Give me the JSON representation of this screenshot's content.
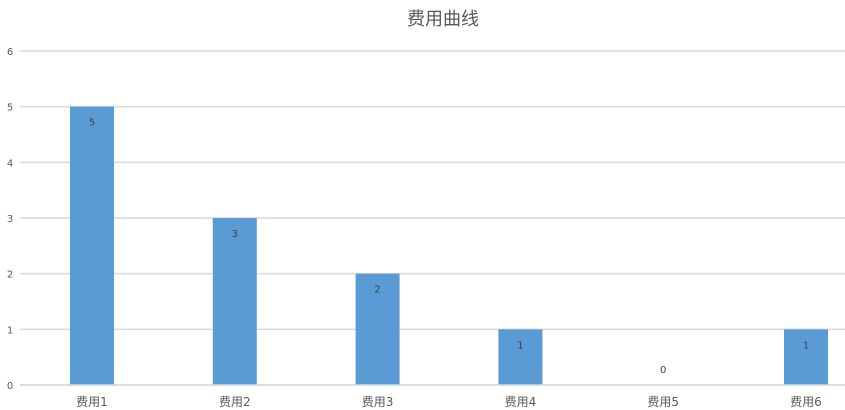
{
  "chart_data": {
    "type": "bar",
    "title": "费用曲线",
    "xlabel": "",
    "ylabel": "",
    "categories": [
      "费用1",
      "费用2",
      "费用3",
      "费用4",
      "费用5",
      "费用6"
    ],
    "values": [
      5,
      3,
      2,
      1,
      0,
      1
    ],
    "ylim": [
      0,
      6
    ],
    "yticks": [
      0,
      1,
      2,
      3,
      4,
      5,
      6
    ],
    "grid": true,
    "data_labels": true,
    "legend": "none",
    "colors": {
      "bar": "#5B9BD5",
      "grid": "#D9D9D9"
    }
  }
}
